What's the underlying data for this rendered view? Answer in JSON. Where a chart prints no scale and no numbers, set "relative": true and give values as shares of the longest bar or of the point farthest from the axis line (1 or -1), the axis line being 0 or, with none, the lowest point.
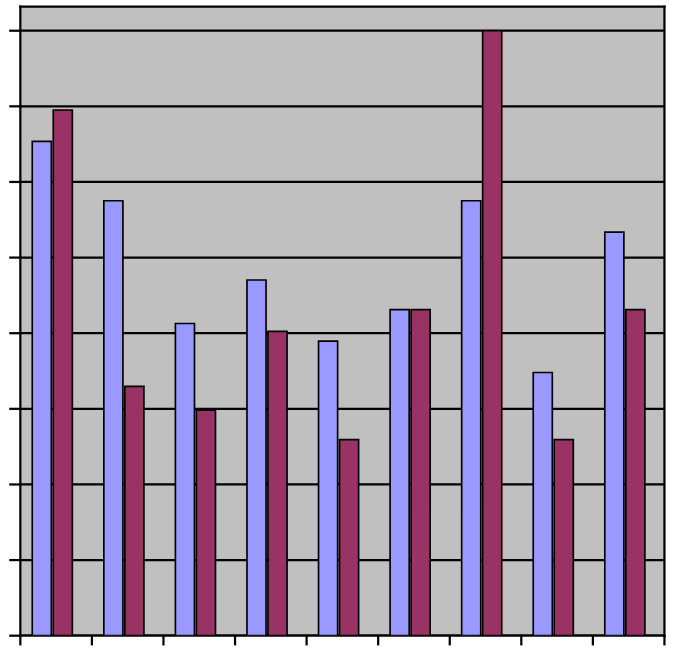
{
  "chart_data": {
    "type": "bar",
    "relative": true,
    "grid": "y",
    "categories": [
      null,
      null,
      null,
      null,
      null,
      null,
      null,
      null,
      null
    ],
    "series": [
      {
        "color": "#9999ff",
        "values": [
          0.817,
          0.719,
          0.516,
          0.588,
          0.487,
          0.539,
          0.719,
          0.435,
          0.667
        ]
      },
      {
        "color": "#993366",
        "values": [
          0.869,
          0.412,
          0.373,
          0.503,
          0.324,
          0.539,
          1,
          0.324,
          0.539
        ]
      }
    ]
  }
}
